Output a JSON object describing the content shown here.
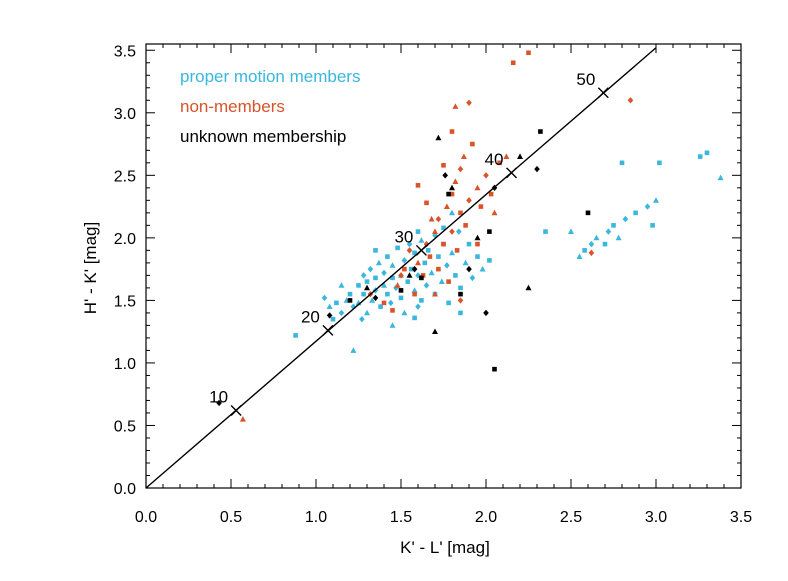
{
  "chart_data": {
    "type": "scatter",
    "title": "",
    "xlabel": "K' - L' [mag]",
    "ylabel": "H' - K' [mag]",
    "xlim": [
      0.0,
      3.5
    ],
    "ylim": [
      0.0,
      3.55
    ],
    "xticks": [
      0.0,
      0.5,
      1.0,
      1.5,
      2.0,
      2.5,
      3.0,
      3.5
    ],
    "xtick_labels": [
      "0.0",
      "0.5",
      "1.0",
      "1.5",
      "2.0",
      "2.5",
      "3.0",
      "3.5"
    ],
    "yticks": [
      0.0,
      0.5,
      1.0,
      1.5,
      2.0,
      2.5,
      3.0,
      3.5
    ],
    "ytick_labels": [
      "0.0",
      "0.5",
      "1.0",
      "1.5",
      "2.0",
      "2.5",
      "3.0",
      "3.5"
    ],
    "legend": {
      "position": "top-left",
      "entries": [
        {
          "label": "proper motion members",
          "color": "#3ab7dd"
        },
        {
          "label": "non-members",
          "color": "#d9542a"
        },
        {
          "label": "unknown membership",
          "color": "#000000"
        }
      ]
    },
    "reference_line": {
      "from": [
        0.0,
        0.0
      ],
      "to": [
        3.0,
        3.52
      ],
      "markers": [
        {
          "label": "10",
          "x": 0.53,
          "y": 0.62
        },
        {
          "label": "20",
          "x": 1.07,
          "y": 1.26
        },
        {
          "label": "30",
          "x": 1.62,
          "y": 1.9
        },
        {
          "label": "40",
          "x": 2.15,
          "y": 2.52
        },
        {
          "label": "50",
          "x": 2.69,
          "y": 3.16
        }
      ]
    },
    "series": [
      {
        "name": "proper motion members",
        "color": "#3ab7dd",
        "points": [
          [
            0.88,
            1.22,
            "s"
          ],
          [
            1.05,
            1.52,
            "d"
          ],
          [
            1.08,
            1.45,
            "t"
          ],
          [
            1.12,
            1.48,
            "s"
          ],
          [
            1.15,
            1.4,
            "d"
          ],
          [
            1.18,
            1.5,
            "t"
          ],
          [
            1.2,
            1.55,
            "s"
          ],
          [
            1.22,
            1.45,
            "d"
          ],
          [
            1.22,
            1.1,
            "t"
          ],
          [
            1.25,
            1.62,
            "s"
          ],
          [
            1.25,
            1.48,
            "t"
          ],
          [
            1.28,
            1.7,
            "d"
          ],
          [
            1.28,
            1.55,
            "s"
          ],
          [
            1.3,
            1.4,
            "t"
          ],
          [
            1.3,
            1.65,
            "s"
          ],
          [
            1.32,
            1.75,
            "d"
          ],
          [
            1.33,
            1.5,
            "t"
          ],
          [
            1.35,
            1.68,
            "s"
          ],
          [
            1.35,
            1.58,
            "d"
          ],
          [
            1.37,
            1.8,
            "t"
          ],
          [
            1.38,
            1.45,
            "s"
          ],
          [
            1.4,
            1.72,
            "d"
          ],
          [
            1.4,
            1.62,
            "t"
          ],
          [
            1.42,
            1.55,
            "s"
          ],
          [
            1.42,
            1.85,
            "s"
          ],
          [
            1.44,
            1.48,
            "d"
          ],
          [
            1.45,
            1.78,
            "t"
          ],
          [
            1.45,
            1.68,
            "s"
          ],
          [
            1.47,
            1.6,
            "d"
          ],
          [
            1.48,
            1.92,
            "s"
          ],
          [
            1.5,
            1.7,
            "t"
          ],
          [
            1.5,
            1.52,
            "s"
          ],
          [
            1.52,
            1.82,
            "d"
          ],
          [
            1.52,
            1.4,
            "t"
          ],
          [
            1.54,
            1.65,
            "s"
          ],
          [
            1.55,
            1.95,
            "d"
          ],
          [
            1.56,
            1.75,
            "s"
          ],
          [
            1.58,
            1.58,
            "t"
          ],
          [
            1.58,
            1.88,
            "s"
          ],
          [
            1.6,
            1.7,
            "d"
          ],
          [
            1.62,
            1.5,
            "s"
          ],
          [
            1.62,
            1.98,
            "t"
          ],
          [
            1.64,
            1.8,
            "s"
          ],
          [
            1.65,
            1.62,
            "d"
          ],
          [
            1.66,
            1.9,
            "s"
          ],
          [
            1.68,
            1.72,
            "t"
          ],
          [
            1.7,
            1.55,
            "s"
          ],
          [
            1.7,
            2.02,
            "d"
          ],
          [
            1.72,
            1.85,
            "s"
          ],
          [
            1.74,
            1.65,
            "t"
          ],
          [
            1.75,
            1.95,
            "s"
          ],
          [
            1.77,
            1.78,
            "d"
          ],
          [
            1.78,
            1.48,
            "s"
          ],
          [
            1.8,
            1.88,
            "t"
          ],
          [
            1.82,
            1.7,
            "s"
          ],
          [
            1.84,
            2.05,
            "d"
          ],
          [
            1.85,
            1.6,
            "s"
          ],
          [
            1.88,
            1.8,
            "t"
          ],
          [
            1.9,
            1.95,
            "s"
          ],
          [
            1.92,
            1.68,
            "d"
          ],
          [
            1.95,
            1.85,
            "s"
          ],
          [
            1.98,
            1.75,
            "t"
          ],
          [
            2.02,
            1.82,
            "s"
          ],
          [
            1.35,
            1.9,
            "s"
          ],
          [
            1.27,
            1.35,
            "d"
          ],
          [
            1.45,
            1.3,
            "t"
          ],
          [
            1.58,
            1.36,
            "s"
          ],
          [
            1.6,
            2.05,
            "s"
          ],
          [
            1.15,
            1.62,
            "t"
          ],
          [
            1.1,
            1.35,
            "s"
          ],
          [
            1.6,
            1.45,
            "d"
          ],
          [
            1.85,
            1.4,
            "s"
          ],
          [
            1.75,
            2.08,
            "s"
          ],
          [
            1.8,
            2.2,
            "t"
          ],
          [
            2.35,
            2.05,
            "s"
          ],
          [
            2.5,
            2.05,
            "t"
          ],
          [
            2.55,
            1.85,
            "t"
          ],
          [
            2.58,
            1.9,
            "s"
          ],
          [
            2.62,
            1.95,
            "d"
          ],
          [
            2.65,
            2.0,
            "t"
          ],
          [
            2.7,
            1.95,
            "s"
          ],
          [
            2.72,
            2.05,
            "d"
          ],
          [
            2.75,
            2.1,
            "s"
          ],
          [
            2.78,
            2.0,
            "t"
          ],
          [
            2.82,
            2.15,
            "d"
          ],
          [
            2.88,
            2.2,
            "s"
          ],
          [
            2.95,
            2.25,
            "d"
          ],
          [
            2.98,
            2.1,
            "s"
          ],
          [
            3.0,
            2.3,
            "t"
          ],
          [
            2.8,
            2.6,
            "s"
          ],
          [
            3.02,
            2.6,
            "s"
          ],
          [
            3.26,
            2.65,
            "s"
          ],
          [
            3.3,
            2.68,
            "s"
          ],
          [
            3.38,
            2.48,
            "t"
          ]
        ]
      },
      {
        "name": "non-members",
        "color": "#d9542a",
        "points": [
          [
            0.57,
            0.55,
            "t"
          ],
          [
            1.32,
            1.55,
            "d"
          ],
          [
            1.4,
            1.48,
            "s"
          ],
          [
            1.48,
            1.62,
            "t"
          ],
          [
            1.52,
            1.75,
            "s"
          ],
          [
            1.55,
            1.9,
            "d"
          ],
          [
            1.58,
            1.55,
            "s"
          ],
          [
            1.6,
            1.8,
            "t"
          ],
          [
            1.63,
            1.7,
            "s"
          ],
          [
            1.65,
            1.95,
            "d"
          ],
          [
            1.67,
            1.85,
            "s"
          ],
          [
            1.7,
            2.05,
            "t"
          ],
          [
            1.72,
            1.75,
            "s"
          ],
          [
            1.72,
            2.15,
            "d"
          ],
          [
            1.75,
            1.95,
            "s"
          ],
          [
            1.77,
            2.25,
            "t"
          ],
          [
            1.78,
            1.65,
            "s"
          ],
          [
            1.8,
            2.05,
            "d"
          ],
          [
            1.8,
            2.35,
            "s"
          ],
          [
            1.82,
            2.45,
            "t"
          ],
          [
            1.83,
            1.9,
            "s"
          ],
          [
            1.85,
            2.55,
            "d"
          ],
          [
            1.85,
            2.2,
            "s"
          ],
          [
            1.87,
            2.65,
            "t"
          ],
          [
            1.88,
            2.1,
            "s"
          ],
          [
            1.9,
            2.3,
            "d"
          ],
          [
            1.92,
            2.75,
            "s"
          ],
          [
            1.95,
            2.4,
            "t"
          ],
          [
            1.97,
            2.25,
            "s"
          ],
          [
            2.0,
            2.5,
            "d"
          ],
          [
            2.03,
            2.35,
            "s"
          ],
          [
            2.05,
            2.2,
            "t"
          ],
          [
            1.6,
            2.42,
            "s"
          ],
          [
            1.65,
            2.28,
            "s"
          ],
          [
            1.68,
            2.15,
            "t"
          ],
          [
            1.85,
            1.5,
            "d"
          ],
          [
            1.45,
            1.42,
            "s"
          ],
          [
            1.5,
            1.7,
            "d"
          ],
          [
            1.7,
            1.55,
            "t"
          ],
          [
            1.75,
            2.58,
            "s"
          ],
          [
            1.8,
            2.85,
            "s"
          ],
          [
            1.82,
            3.05,
            "t"
          ],
          [
            1.9,
            3.08,
            "d"
          ],
          [
            2.16,
            3.4,
            "s"
          ],
          [
            2.25,
            3.48,
            "s"
          ],
          [
            2.08,
            2.6,
            "s"
          ],
          [
            2.12,
            2.65,
            "t"
          ],
          [
            2.85,
            3.1,
            "d"
          ],
          [
            2.62,
            1.88,
            "d"
          ],
          [
            1.95,
            1.95,
            "s"
          ]
        ]
      },
      {
        "name": "unknown membership",
        "color": "#000000",
        "points": [
          [
            0.43,
            0.68,
            "d"
          ],
          [
            1.08,
            1.38,
            "d"
          ],
          [
            1.2,
            1.5,
            "s"
          ],
          [
            1.3,
            1.6,
            "t"
          ],
          [
            1.35,
            1.52,
            "d"
          ],
          [
            1.5,
            1.58,
            "s"
          ],
          [
            1.55,
            1.7,
            "t"
          ],
          [
            1.58,
            1.75,
            "d"
          ],
          [
            1.62,
            1.68,
            "s"
          ],
          [
            1.7,
            1.25,
            "t"
          ],
          [
            1.72,
            2.8,
            "t"
          ],
          [
            1.76,
            2.5,
            "d"
          ],
          [
            1.78,
            2.35,
            "s"
          ],
          [
            1.8,
            2.4,
            "t"
          ],
          [
            1.85,
            1.55,
            "s"
          ],
          [
            1.9,
            1.75,
            "d"
          ],
          [
            1.95,
            2.0,
            "t"
          ],
          [
            2.0,
            1.4,
            "d"
          ],
          [
            2.02,
            2.05,
            "s"
          ],
          [
            2.05,
            2.4,
            "d"
          ],
          [
            2.05,
            0.95,
            "s"
          ],
          [
            2.2,
            2.65,
            "t"
          ],
          [
            2.25,
            1.6,
            "t"
          ],
          [
            2.3,
            2.55,
            "d"
          ],
          [
            2.32,
            2.85,
            "s"
          ],
          [
            2.6,
            2.2,
            "s"
          ]
        ]
      }
    ]
  }
}
